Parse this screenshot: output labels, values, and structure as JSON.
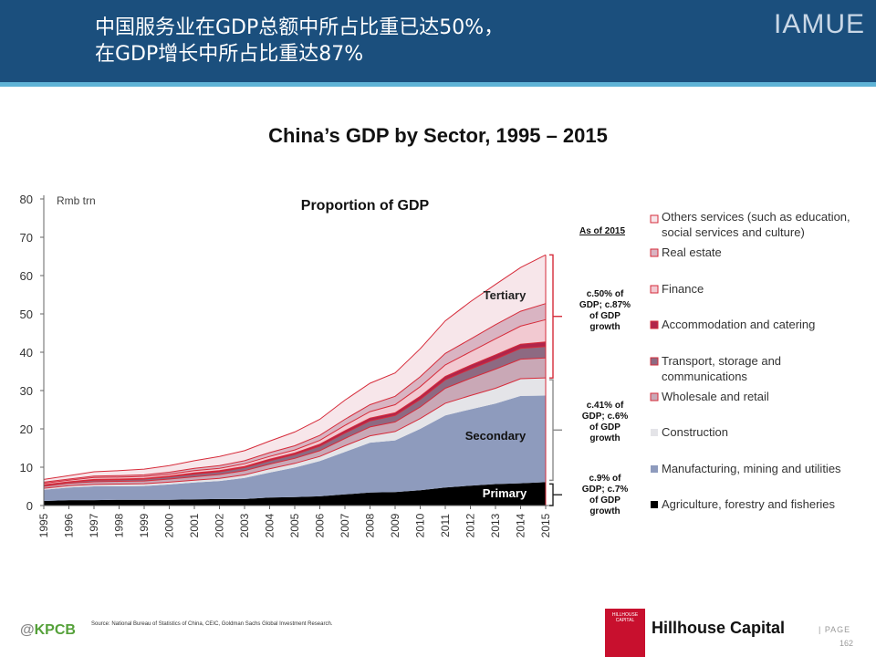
{
  "header": {
    "title_line1": "中国服务业在GDP总额中所占比重已达50%，",
    "title_line2": "在GDP增长中所占比重达87%",
    "brand": "IAMUE"
  },
  "chart_data": {
    "type": "area",
    "title": "China’s GDP by Sector, 1995 – 2015",
    "inner_title": "Proportion of GDP",
    "ylabel": "Rmb trn",
    "ylim": [
      0,
      80
    ],
    "yticks": [
      0,
      10,
      20,
      30,
      40,
      50,
      60,
      70,
      80
    ],
    "x": [
      "1995",
      "1996",
      "1997",
      "1998",
      "1999",
      "2000",
      "2001",
      "2002",
      "2003",
      "2004",
      "2005",
      "2006",
      "2007",
      "2008",
      "2009",
      "2010",
      "2011",
      "2012",
      "2013",
      "2014",
      "2015"
    ],
    "stacked": true,
    "series": [
      {
        "name": "Agriculture, forestry and fisheries",
        "color": "#000000",
        "values": [
          1.2,
          1.4,
          1.4,
          1.5,
          1.5,
          1.5,
          1.6,
          1.7,
          1.7,
          2.1,
          2.2,
          2.4,
          2.9,
          3.4,
          3.5,
          4.0,
          4.7,
          5.2,
          5.6,
          5.8,
          6.1
        ]
      },
      {
        "name": "Manufacturing, mining and utilities",
        "color": "#8e9bbd",
        "values": [
          2.9,
          3.3,
          3.6,
          3.5,
          3.6,
          4.0,
          4.4,
          4.7,
          5.5,
          6.5,
          7.7,
          9.2,
          11.1,
          13.0,
          13.5,
          16.0,
          18.8,
          19.9,
          21.0,
          22.8,
          22.6
        ]
      },
      {
        "name": "Construction",
        "color": "#e4e4e8",
        "values": [
          0.4,
          0.5,
          0.5,
          0.6,
          0.6,
          0.6,
          0.6,
          0.7,
          0.8,
          1.0,
          1.1,
          1.2,
          1.6,
          1.8,
          2.3,
          2.7,
          3.2,
          3.6,
          4.0,
          4.5,
          4.6
        ]
      },
      {
        "name": "Wholesale and retail",
        "color": "#c9a8b6",
        "values": [
          0.5,
          0.6,
          0.7,
          0.7,
          0.7,
          0.8,
          0.9,
          1.0,
          1.1,
          1.2,
          1.3,
          1.5,
          1.9,
          2.3,
          2.5,
          3.0,
          3.9,
          4.5,
          5.0,
          5.1,
          5.2
        ]
      },
      {
        "name": "Transport, storage and communications",
        "color": "#8d6a82",
        "values": [
          0.3,
          0.3,
          0.4,
          0.4,
          0.5,
          0.6,
          0.7,
          0.7,
          0.8,
          0.9,
          1.0,
          1.2,
          1.4,
          1.6,
          1.7,
          2.0,
          2.2,
          2.4,
          2.6,
          2.8,
          3.0
        ]
      },
      {
        "name": "Accommodation and catering",
        "color": "#b0254b",
        "values": [
          0.1,
          0.1,
          0.2,
          0.2,
          0.2,
          0.2,
          0.3,
          0.3,
          0.3,
          0.4,
          0.4,
          0.5,
          0.6,
          0.7,
          0.7,
          0.8,
          0.9,
          1.0,
          1.1,
          1.1,
          1.2
        ]
      },
      {
        "name": "Finance",
        "color": "#f2c9d1",
        "values": [
          0.4,
          0.4,
          0.5,
          0.5,
          0.5,
          0.5,
          0.6,
          0.6,
          0.7,
          0.7,
          0.8,
          1.0,
          1.4,
          1.7,
          2.1,
          2.5,
          3.0,
          3.5,
          4.2,
          4.7,
          5.8
        ]
      },
      {
        "name": "Real estate",
        "color": "#d9b4c2",
        "values": [
          0.3,
          0.3,
          0.4,
          0.4,
          0.4,
          0.5,
          0.6,
          0.7,
          0.8,
          1.0,
          1.1,
          1.3,
          1.6,
          1.8,
          2.2,
          2.6,
          3.0,
          3.3,
          3.7,
          3.9,
          4.2
        ]
      },
      {
        "name": "Others services (such as education, social services and culture)",
        "color": "#f7e6ea",
        "values": [
          0.7,
          0.9,
          1.1,
          1.3,
          1.5,
          1.7,
          2.0,
          2.4,
          2.6,
          3.0,
          3.6,
          4.2,
          5.0,
          5.6,
          6.1,
          7.3,
          8.5,
          9.8,
          10.5,
          11.4,
          12.7
        ]
      }
    ],
    "legend": {
      "placement": "right",
      "header": "As of 2015"
    },
    "annotations": {
      "tertiary": "Tertiary",
      "secondary": "Secondary",
      "primary": "Primary",
      "tertiary_note": [
        "c.50% of",
        "GDP; c.87%",
        "of GDP",
        "growth"
      ],
      "secondary_note": [
        "c.41% of",
        "GDP; c.6%",
        "of GDP",
        "growth"
      ],
      "primary_note": [
        "c.9% of",
        "GDP; c.7%",
        "of GDP",
        "growth"
      ]
    },
    "grid": false
  },
  "footer": {
    "source": "Source: National Bureau of Statistics of China, CEIC, Goldman Sachs Global Investment Research.",
    "kpcb": "KPCB",
    "kpcb_prefix": "@",
    "logo_text": "HILLHOUSE CAPITAL",
    "company": "Hillhouse Capital",
    "page_label": "| PAGE",
    "page_number": "162"
  },
  "colors": {
    "header_bg": "#1b4f7d",
    "accent_line": "#5fb3d6",
    "series_outline": "#d62b3a"
  }
}
